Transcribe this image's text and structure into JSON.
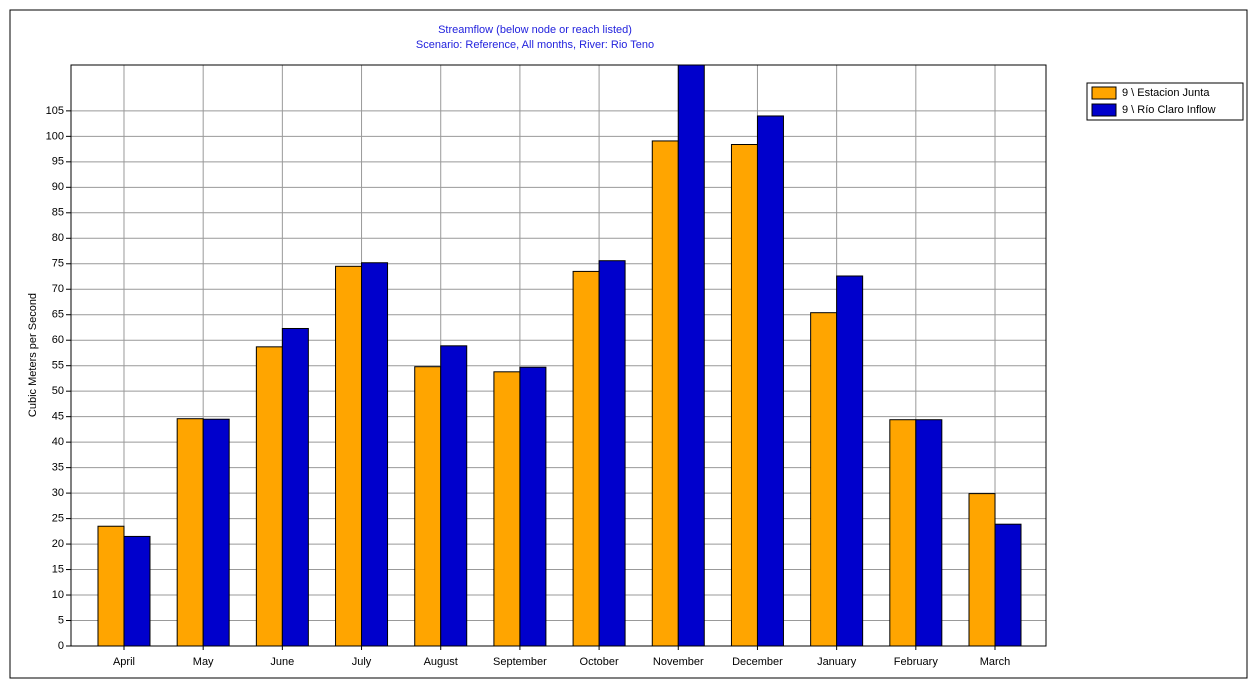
{
  "chart_data": {
    "type": "bar",
    "title": "Streamflow  (below node or reach listed)",
    "subtitle": "Scenario: Reference,  All months,  River: Rio Teno",
    "y_label": "Cubic Meters per Second",
    "categories": [
      "April",
      "May",
      "June",
      "July",
      "August",
      "September",
      "October",
      "November",
      "December",
      "January",
      "February",
      "March"
    ],
    "series": [
      {
        "name": "9 \\ Estacion Junta",
        "color": "#ffa500",
        "values": [
          23.5,
          44.6,
          58.7,
          74.5,
          54.8,
          53.8,
          73.5,
          99.1,
          98.4,
          65.4,
          44.4,
          29.9
        ]
      },
      {
        "name": "9 \\ Río Claro Inflow",
        "color": "#0000cc",
        "values": [
          21.5,
          44.5,
          62.3,
          75.2,
          58.9,
          54.7,
          75.6,
          114,
          104,
          72.6,
          44.4,
          23.9
        ]
      }
    ],
    "ylim": [
      0,
      114
    ],
    "yticks": [
      0,
      5,
      10,
      15,
      20,
      25,
      30,
      35,
      40,
      45,
      50,
      55,
      60,
      65,
      70,
      75,
      80,
      85,
      90,
      95,
      100,
      105
    ],
    "grid": true,
    "legend": "right"
  }
}
